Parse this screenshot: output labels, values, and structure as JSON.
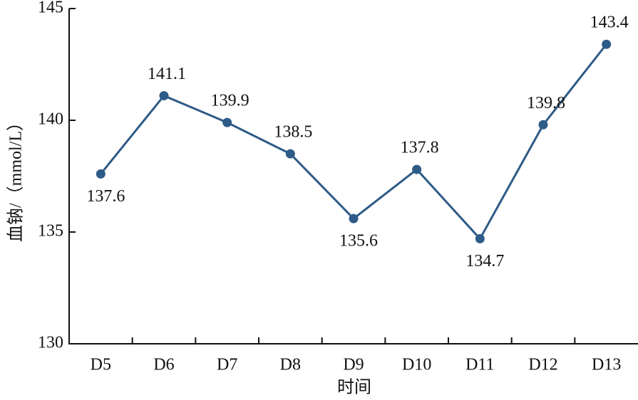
{
  "chart_data": {
    "type": "line",
    "xlabel": "时间",
    "ylabel": "血钠/（mmol/L）",
    "categories": [
      "D5",
      "D6",
      "D7",
      "D8",
      "D9",
      "D10",
      "D11",
      "D12",
      "D13"
    ],
    "series": [
      {
        "color": "#2e5b87",
        "values": [
          137.6,
          141.1,
          139.9,
          138.5,
          135.6,
          137.8,
          134.7,
          139.8,
          143.4
        ]
      }
    ],
    "ylim": [
      130,
      145
    ],
    "yticks": [
      130,
      135,
      140,
      145
    ]
  }
}
